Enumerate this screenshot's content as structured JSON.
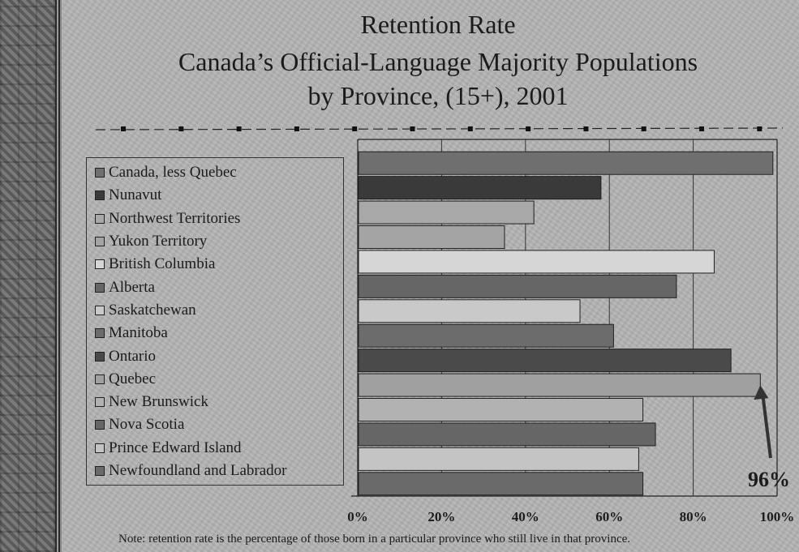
{
  "chart_data": {
    "type": "bar",
    "orientation": "horizontal",
    "title_lines": [
      "Retention Rate",
      "Canada’s Official-Language Majority Populations",
      "by Province, (15+), 2001"
    ],
    "categories": [
      "Canada, less Quebec",
      "Nunavut",
      "Northwest Territories",
      "Yukon Territory",
      "British Columbia",
      "Alberta",
      "Saskatchewan",
      "Manitoba",
      "Ontario",
      "Quebec",
      "New Brunswick",
      "Nova Scotia",
      "Prince Edward Island",
      "Newfoundland and Labrador"
    ],
    "values": [
      99,
      58,
      42,
      35,
      85,
      76,
      53,
      61,
      89,
      96,
      68,
      71,
      67,
      68
    ],
    "bar_colors": [
      "#6f6f6f",
      "#3a3a3a",
      "#a8a8a8",
      "#a4a4a4",
      "#d6d6d6",
      "#666666",
      "#c9c9c9",
      "#6c6c6c",
      "#4a4a4a",
      "#a0a0a0",
      "#b2b2b2",
      "#666666",
      "#c4c4c4",
      "#6a6a6a"
    ],
    "xlim": [
      0,
      100
    ],
    "x_ticks": [
      "0%",
      "20%",
      "40%",
      "60%",
      "80%",
      "100%"
    ],
    "grid": true,
    "legend_position": "left",
    "annotation": {
      "text": "96%",
      "points_to": "Quebec"
    },
    "note": "Note:  retention rate is the percentage of those born in a particular province who still live in that province."
  }
}
